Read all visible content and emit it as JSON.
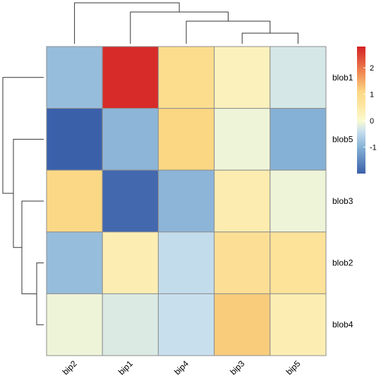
{
  "chart_data": {
    "type": "heatmap",
    "columns": [
      "bip2",
      "bip1",
      "bip4",
      "bip3",
      "bip5"
    ],
    "rows": [
      "blob1",
      "blob5",
      "blob3",
      "blob2",
      "blob4"
    ],
    "values": [
      [
        -0.85,
        2.7,
        0.9,
        0.25,
        -0.3
      ],
      [
        -2.0,
        -0.95,
        1.1,
        -0.1,
        -1.0
      ],
      [
        1.05,
        -1.9,
        -0.95,
        0.4,
        -0.1
      ],
      [
        -0.85,
        0.35,
        -0.45,
        0.8,
        0.7
      ],
      [
        -0.1,
        -0.25,
        -0.4,
        1.2,
        0.35
      ]
    ],
    "color_scale": {
      "min": -2.0,
      "max": 2.8,
      "stops": [
        {
          "value": -2.0,
          "color": "#3b60aa"
        },
        {
          "value": -1.0,
          "color": "#86b1d6"
        },
        {
          "value": -0.4,
          "color": "#c8e0ee"
        },
        {
          "value": 0.0,
          "color": "#fafad0"
        },
        {
          "value": 0.6,
          "color": "#fde59f"
        },
        {
          "value": 1.1,
          "color": "#fbd783"
        },
        {
          "value": 1.8,
          "color": "#f08b53"
        },
        {
          "value": 2.8,
          "color": "#d42024"
        }
      ],
      "ticks": [
        -1,
        0,
        1,
        2
      ]
    },
    "legend_position": "top-right",
    "grid_color": "#8e8e8e",
    "column_dendrogram": "top",
    "row_dendrogram": "left"
  }
}
